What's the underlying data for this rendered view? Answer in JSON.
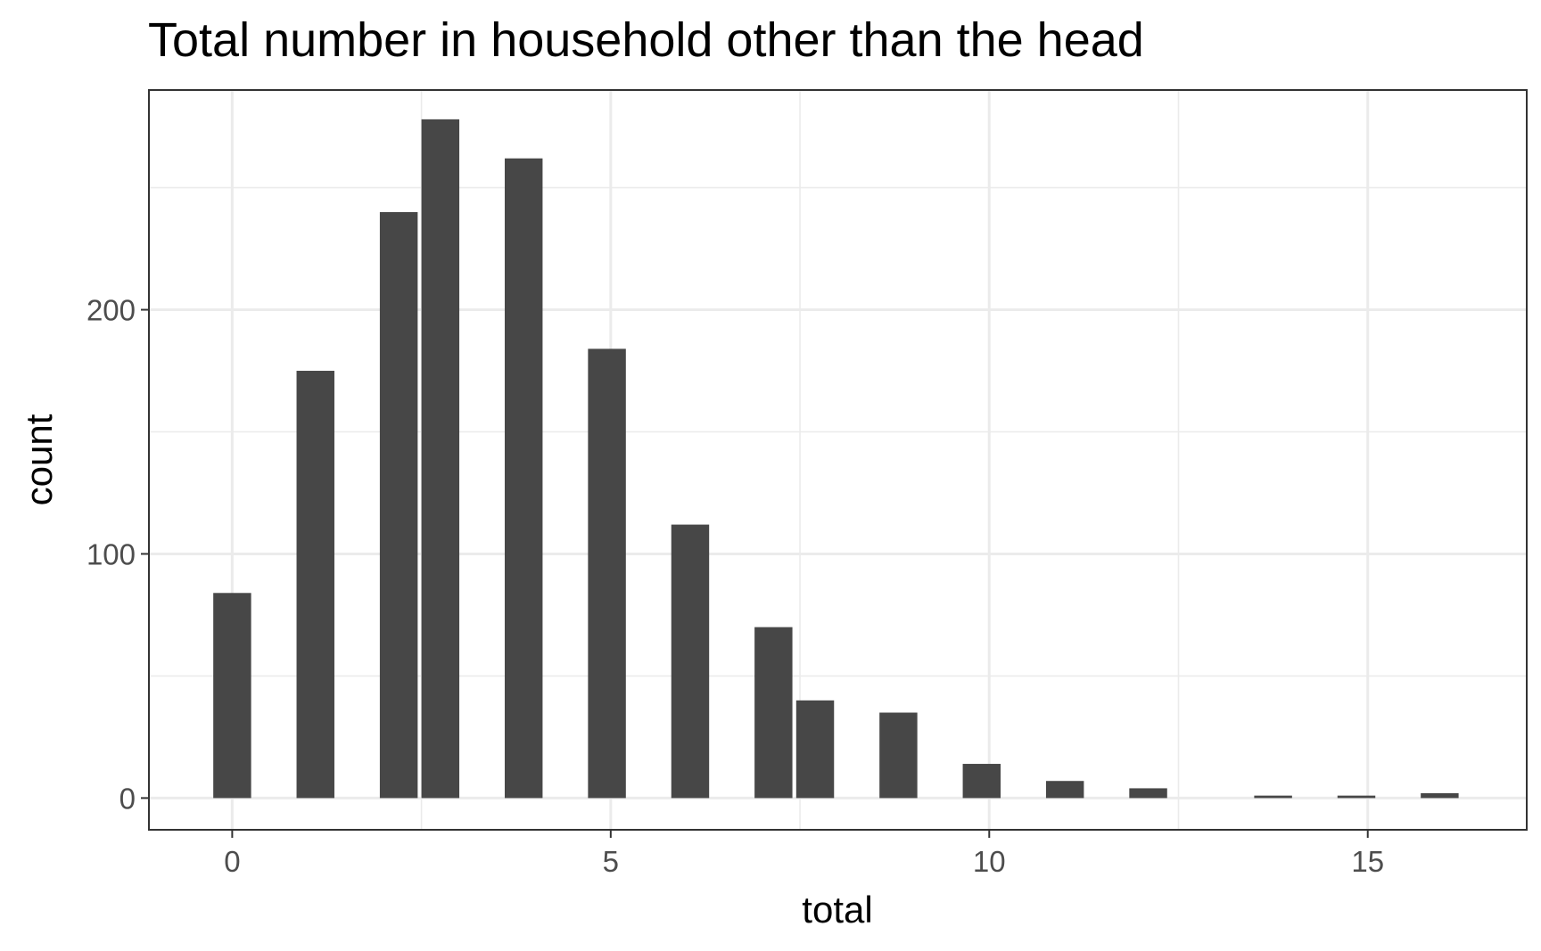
{
  "chart_data": {
    "type": "bar",
    "title": "Total number in household other than the head",
    "xlabel": "total",
    "ylabel": "count",
    "bar_color": "#474747",
    "grid": true,
    "bin_width": 0.5,
    "xlim": [
      -1.1,
      17.1
    ],
    "ylim": [
      -13,
      290
    ],
    "x_ticks": [
      0,
      5,
      10,
      15
    ],
    "x_tick_labels": [
      "0",
      "5",
      "10",
      "15"
    ],
    "x_minor_grid": [
      2.5,
      7.5,
      12.5
    ],
    "y_ticks": [
      0,
      100,
      200
    ],
    "y_tick_labels": [
      "0",
      "100",
      "200"
    ],
    "y_minor_grid": [
      50,
      150,
      250
    ],
    "bins": [
      {
        "x": 0.0,
        "count": 84
      },
      {
        "x": 1.1,
        "count": 175
      },
      {
        "x": 2.2,
        "count": 240
      },
      {
        "x": 2.75,
        "count": 278
      },
      {
        "x": 3.85,
        "count": 262
      },
      {
        "x": 4.95,
        "count": 184
      },
      {
        "x": 6.05,
        "count": 112
      },
      {
        "x": 7.15,
        "count": 70
      },
      {
        "x": 7.7,
        "count": 40
      },
      {
        "x": 8.8,
        "count": 35
      },
      {
        "x": 9.9,
        "count": 14
      },
      {
        "x": 11.0,
        "count": 7
      },
      {
        "x": 12.1,
        "count": 4
      },
      {
        "x": 13.75,
        "count": 1
      },
      {
        "x": 14.85,
        "count": 1
      },
      {
        "x": 15.95,
        "count": 2
      }
    ]
  }
}
